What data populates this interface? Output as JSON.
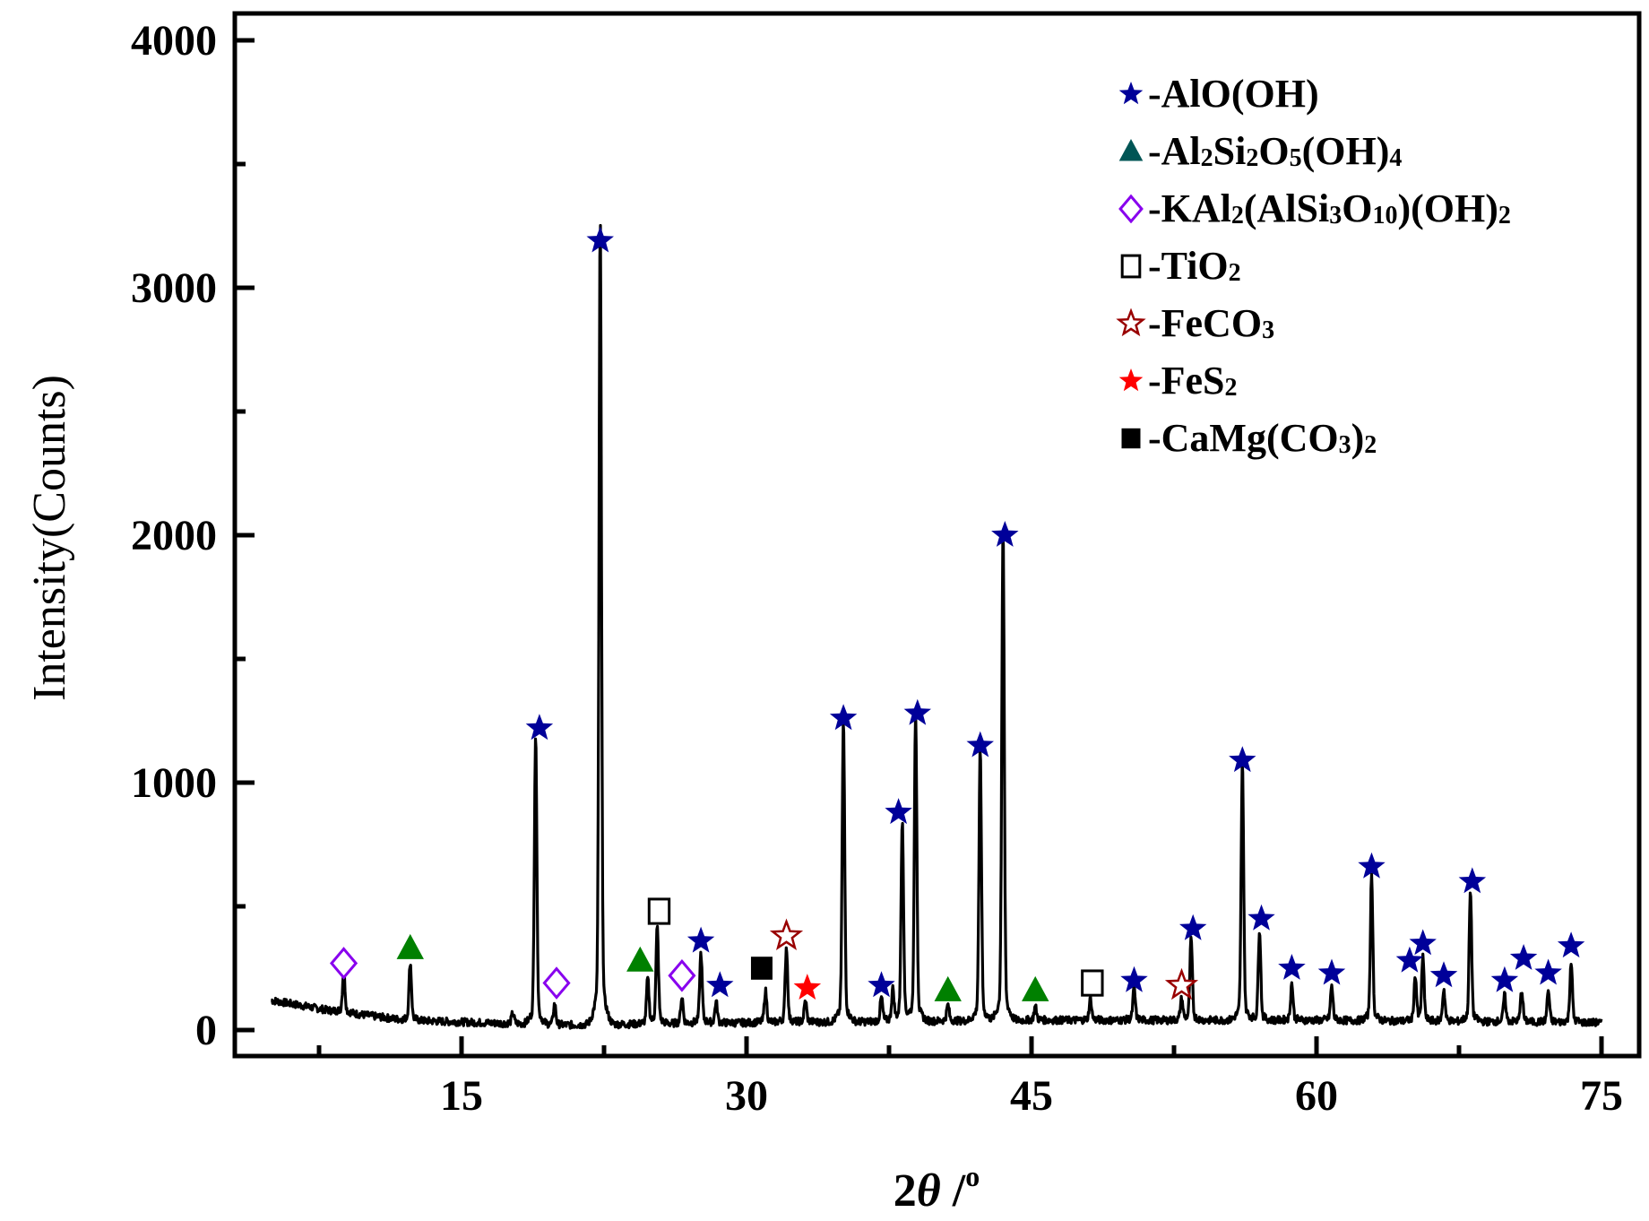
{
  "chart_data": {
    "type": "line",
    "title": "",
    "xlabel": "2θ /°",
    "ylabel": "Intensity(Counts)",
    "xlim": [
      5,
      76
    ],
    "ylim": [
      -100,
      4100
    ],
    "x_ticks": [
      15,
      30,
      45,
      60,
      75
    ],
    "y_ticks": [
      0,
      1000,
      2000,
      3000,
      4000
    ],
    "x_minor_ticks": [
      7.5,
      22.5,
      37.5,
      52.5,
      67.5
    ],
    "y_minor_ticks": [
      500,
      1500,
      2500,
      3500
    ],
    "grid": false,
    "legend_position": "upper right",
    "background_level": [
      [
        5,
        120
      ],
      [
        8,
        80
      ],
      [
        12,
        40
      ],
      [
        20,
        20
      ],
      [
        30,
        30
      ],
      [
        45,
        40
      ],
      [
        60,
        40
      ],
      [
        75,
        30
      ]
    ],
    "peaks": [
      {
        "x": 8.8,
        "y": 190,
        "phase": "KAl2(AlSi3O10)(OH)2"
      },
      {
        "x": 12.3,
        "y": 250,
        "phase": "Al2Si2O5(OH)4"
      },
      {
        "x": 17.7,
        "y": 70
      },
      {
        "x": 18.9,
        "y": 1150,
        "phase": "AlO(OH)"
      },
      {
        "x": 19.9,
        "y": 110,
        "phase": "KAl2(AlSi3O10)(OH)2"
      },
      {
        "x": 22.3,
        "y": 3130,
        "phase": "AlO(OH)"
      },
      {
        "x": 24.8,
        "y": 200,
        "phase": "Al2Si2O5(OH)4"
      },
      {
        "x": 25.3,
        "y": 400,
        "phase": "TiO2"
      },
      {
        "x": 26.6,
        "y": 130,
        "phase": "KAl2(AlSi3O10)(OH)2"
      },
      {
        "x": 27.6,
        "y": 300,
        "phase": "AlO(OH)"
      },
      {
        "x": 28.4,
        "y": 110,
        "phase": "AlO(OH)"
      },
      {
        "x": 31.0,
        "y": 150,
        "phase": "CaMg(CO3)2"
      },
      {
        "x": 32.1,
        "y": 320,
        "phase": "FeCO3"
      },
      {
        "x": 33.1,
        "y": 110,
        "phase": "FeS2"
      },
      {
        "x": 35.1,
        "y": 1190,
        "phase": "AlO(OH)"
      },
      {
        "x": 37.1,
        "y": 120,
        "phase": "AlO(OH)"
      },
      {
        "x": 37.7,
        "y": 150
      },
      {
        "x": 38.2,
        "y": 800,
        "phase": "AlO(OH)"
      },
      {
        "x": 38.9,
        "y": 1220,
        "phase": "AlO(OH)"
      },
      {
        "x": 40.6,
        "y": 90,
        "phase": "Al2Si2O5(OH)4"
      },
      {
        "x": 42.3,
        "y": 1070,
        "phase": "AlO(OH)"
      },
      {
        "x": 43.5,
        "y": 1930,
        "phase": "AlO(OH)"
      },
      {
        "x": 45.2,
        "y": 80,
        "phase": "Al2Si2O5(OH)4"
      },
      {
        "x": 48.1,
        "y": 110,
        "phase": "TiO2"
      },
      {
        "x": 50.4,
        "y": 150,
        "phase": "AlO(OH)"
      },
      {
        "x": 52.9,
        "y": 110,
        "phase": "FeCO3"
      },
      {
        "x": 53.4,
        "y": 340,
        "phase": "AlO(OH)"
      },
      {
        "x": 56.1,
        "y": 1020,
        "phase": "AlO(OH)"
      },
      {
        "x": 57.0,
        "y": 380,
        "phase": "AlO(OH)"
      },
      {
        "x": 58.7,
        "y": 170,
        "phase": "AlO(OH)"
      },
      {
        "x": 60.8,
        "y": 160,
        "phase": "AlO(OH)"
      },
      {
        "x": 62.9,
        "y": 580,
        "phase": "AlO(OH)"
      },
      {
        "x": 65.2,
        "y": 200,
        "phase": "AlO(OH)"
      },
      {
        "x": 65.6,
        "y": 270,
        "phase": "AlO(OH)"
      },
      {
        "x": 66.7,
        "y": 150,
        "phase": "AlO(OH)"
      },
      {
        "x": 68.1,
        "y": 530,
        "phase": "AlO(OH)"
      },
      {
        "x": 69.9,
        "y": 130,
        "phase": "AlO(OH)"
      },
      {
        "x": 70.8,
        "y": 150,
        "phase": "AlO(OH)"
      },
      {
        "x": 72.2,
        "y": 150,
        "phase": "AlO(OH)"
      },
      {
        "x": 73.4,
        "y": 260,
        "phase": "AlO(OH)"
      }
    ],
    "markers": [
      {
        "x": 8.8,
        "y": 270,
        "symbol": "open-diamond",
        "phase": "KAl2(AlSi3O10)(OH)2"
      },
      {
        "x": 12.3,
        "y": 330,
        "symbol": "filled-triangle",
        "phase": "Al2Si2O5(OH)4"
      },
      {
        "x": 19.1,
        "y": 1220,
        "symbol": "filled-star",
        "phase": "AlO(OH)"
      },
      {
        "x": 20.0,
        "y": 190,
        "symbol": "open-diamond",
        "phase": "KAl2(AlSi3O10)(OH)2"
      },
      {
        "x": 22.3,
        "y": 3190,
        "symbol": "filled-star",
        "phase": "AlO(OH)"
      },
      {
        "x": 24.4,
        "y": 280,
        "symbol": "filled-triangle",
        "phase": "Al2Si2O5(OH)4"
      },
      {
        "x": 25.4,
        "y": 480,
        "symbol": "open-square",
        "phase": "TiO2"
      },
      {
        "x": 26.6,
        "y": 220,
        "symbol": "open-diamond",
        "phase": "KAl2(AlSi3O10)(OH)2"
      },
      {
        "x": 27.6,
        "y": 360,
        "symbol": "filled-star",
        "phase": "AlO(OH)"
      },
      {
        "x": 28.6,
        "y": 180,
        "symbol": "filled-star",
        "phase": "AlO(OH)"
      },
      {
        "x": 30.8,
        "y": 250,
        "symbol": "filled-square",
        "phase": "CaMg(CO3)2"
      },
      {
        "x": 32.1,
        "y": 380,
        "symbol": "open-star",
        "phase": "FeCO3"
      },
      {
        "x": 33.2,
        "y": 170,
        "symbol": "red-star",
        "phase": "FeS2"
      },
      {
        "x": 35.1,
        "y": 1260,
        "symbol": "filled-star",
        "phase": "AlO(OH)"
      },
      {
        "x": 37.1,
        "y": 180,
        "symbol": "filled-star",
        "phase": "AlO(OH)"
      },
      {
        "x": 38.0,
        "y": 880,
        "symbol": "filled-star",
        "phase": "AlO(OH)"
      },
      {
        "x": 39.0,
        "y": 1280,
        "symbol": "filled-star",
        "phase": "AlO(OH)"
      },
      {
        "x": 40.6,
        "y": 160,
        "symbol": "filled-triangle",
        "phase": "Al2Si2O5(OH)4"
      },
      {
        "x": 42.3,
        "y": 1150,
        "symbol": "filled-star",
        "phase": "AlO(OH)"
      },
      {
        "x": 43.6,
        "y": 2000,
        "symbol": "filled-star",
        "phase": "AlO(OH)"
      },
      {
        "x": 45.2,
        "y": 160,
        "symbol": "filled-triangle",
        "phase": "Al2Si2O5(OH)4"
      },
      {
        "x": 48.2,
        "y": 190,
        "symbol": "open-square",
        "phase": "TiO2"
      },
      {
        "x": 50.4,
        "y": 200,
        "symbol": "filled-star",
        "phase": "AlO(OH)"
      },
      {
        "x": 52.9,
        "y": 180,
        "symbol": "open-star",
        "phase": "FeCO3"
      },
      {
        "x": 53.5,
        "y": 410,
        "symbol": "filled-star",
        "phase": "AlO(OH)"
      },
      {
        "x": 56.1,
        "y": 1090,
        "symbol": "filled-star",
        "phase": "AlO(OH)"
      },
      {
        "x": 57.1,
        "y": 450,
        "symbol": "filled-star",
        "phase": "AlO(OH)"
      },
      {
        "x": 58.7,
        "y": 250,
        "symbol": "filled-star",
        "phase": "AlO(OH)"
      },
      {
        "x": 60.8,
        "y": 230,
        "symbol": "filled-star",
        "phase": "AlO(OH)"
      },
      {
        "x": 62.9,
        "y": 660,
        "symbol": "filled-star",
        "phase": "AlO(OH)"
      },
      {
        "x": 64.9,
        "y": 280,
        "symbol": "filled-star",
        "phase": "AlO(OH)"
      },
      {
        "x": 65.6,
        "y": 350,
        "symbol": "filled-star",
        "phase": "AlO(OH)"
      },
      {
        "x": 66.7,
        "y": 220,
        "symbol": "filled-star",
        "phase": "AlO(OH)"
      },
      {
        "x": 68.2,
        "y": 600,
        "symbol": "filled-star",
        "phase": "AlO(OH)"
      },
      {
        "x": 69.9,
        "y": 200,
        "symbol": "filled-star",
        "phase": "AlO(OH)"
      },
      {
        "x": 70.9,
        "y": 290,
        "symbol": "filled-star",
        "phase": "AlO(OH)"
      },
      {
        "x": 72.2,
        "y": 230,
        "symbol": "filled-star",
        "phase": "AlO(OH)"
      },
      {
        "x": 73.4,
        "y": 340,
        "symbol": "filled-star",
        "phase": "AlO(OH)"
      }
    ],
    "legend": [
      {
        "symbol": "filled-star",
        "color": "#000099",
        "label": "-AlO(OH)",
        "formula": [
          "-AlO(OH)"
        ]
      },
      {
        "symbol": "filled-triangle",
        "color": "#005555",
        "label": "-Al2Si2O5(OH)4",
        "formula": [
          "-Al",
          "2",
          "Si",
          "2",
          "O",
          "5",
          "(OH)",
          "4"
        ]
      },
      {
        "symbol": "open-diamond",
        "color": "#8800ee",
        "label": "-KAl2(AlSi3O10)(OH)2",
        "formula": [
          "-KAl",
          "2",
          "(AlSi",
          "3",
          "O",
          "10",
          ")(OH)",
          "2"
        ]
      },
      {
        "symbol": "open-square",
        "color": "#000000",
        "label": "-TiO2",
        "formula": [
          "-TiO",
          "2"
        ]
      },
      {
        "symbol": "open-star",
        "color": "#990000",
        "label": "-FeCO3",
        "formula": [
          "-FeCO",
          "3"
        ]
      },
      {
        "symbol": "red-star",
        "color": "#ff0000",
        "label": "-FeS2",
        "formula": [
          "-FeS",
          "2"
        ]
      },
      {
        "symbol": "filled-square",
        "color": "#000000",
        "label": "-CaMg(CO3)2",
        "formula": [
          "-CaMg(CO",
          "3",
          ")",
          "2"
        ]
      }
    ]
  },
  "colors": {
    "line": "#000000",
    "star": "#000099",
    "triangle_plot": "#008000",
    "triangle_legend": "#005555",
    "diamond": "#8800ee",
    "open_star": "#990000",
    "red_star": "#ff0000"
  }
}
